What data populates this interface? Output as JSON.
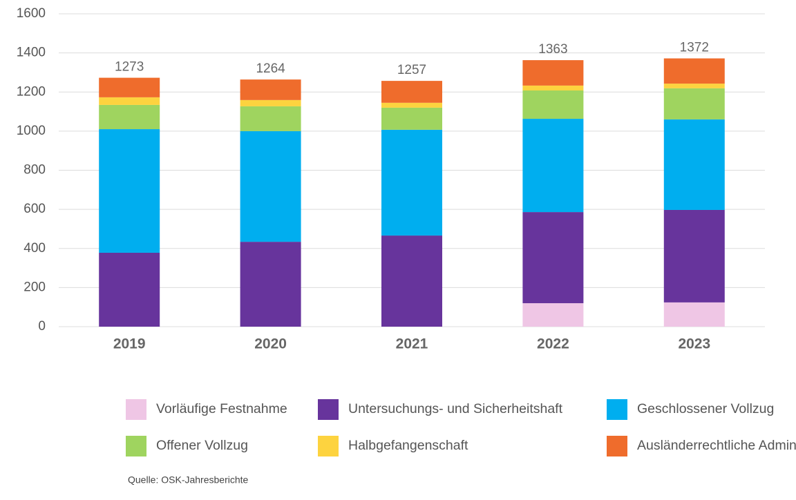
{
  "chart_data": {
    "type": "stacked_bar",
    "categories": [
      "2019",
      "2020",
      "2021",
      "2022",
      "2023"
    ],
    "series": [
      {
        "name": "Vorläufige Festnahme",
        "color": "#efc6e5",
        "values": [
          0,
          0,
          0,
          120,
          124
        ]
      },
      {
        "name": "Untersuchungs- und Sicherheitshaft",
        "color": "#67349c",
        "values": [
          378,
          434,
          466,
          466,
          473
        ]
      },
      {
        "name": "Geschlossener Vollzug",
        "color": "#00aeef",
        "values": [
          632,
          566,
          541,
          477,
          463
        ]
      },
      {
        "name": "Offener Vollzug",
        "color": "#9fd45f",
        "values": [
          124,
          127,
          113,
          145,
          159
        ]
      },
      {
        "name": "Halbgefangenschaft",
        "color": "#fdd33f",
        "values": [
          39,
          32,
          25,
          25,
          24
        ]
      },
      {
        "name": "Ausländerrechtliche Administrativhaft",
        "color": "#ef6c2c",
        "values": [
          100,
          105,
          112,
          130,
          129
        ]
      }
    ],
    "totals": [
      1273,
      1264,
      1257,
      1363,
      1372
    ],
    "ylim": [
      0,
      1600
    ],
    "yticks": [
      0,
      200,
      400,
      600,
      800,
      1000,
      1200,
      1400,
      1600
    ],
    "grid": true,
    "source": "Quelle: OSK-Jahresberichte"
  }
}
